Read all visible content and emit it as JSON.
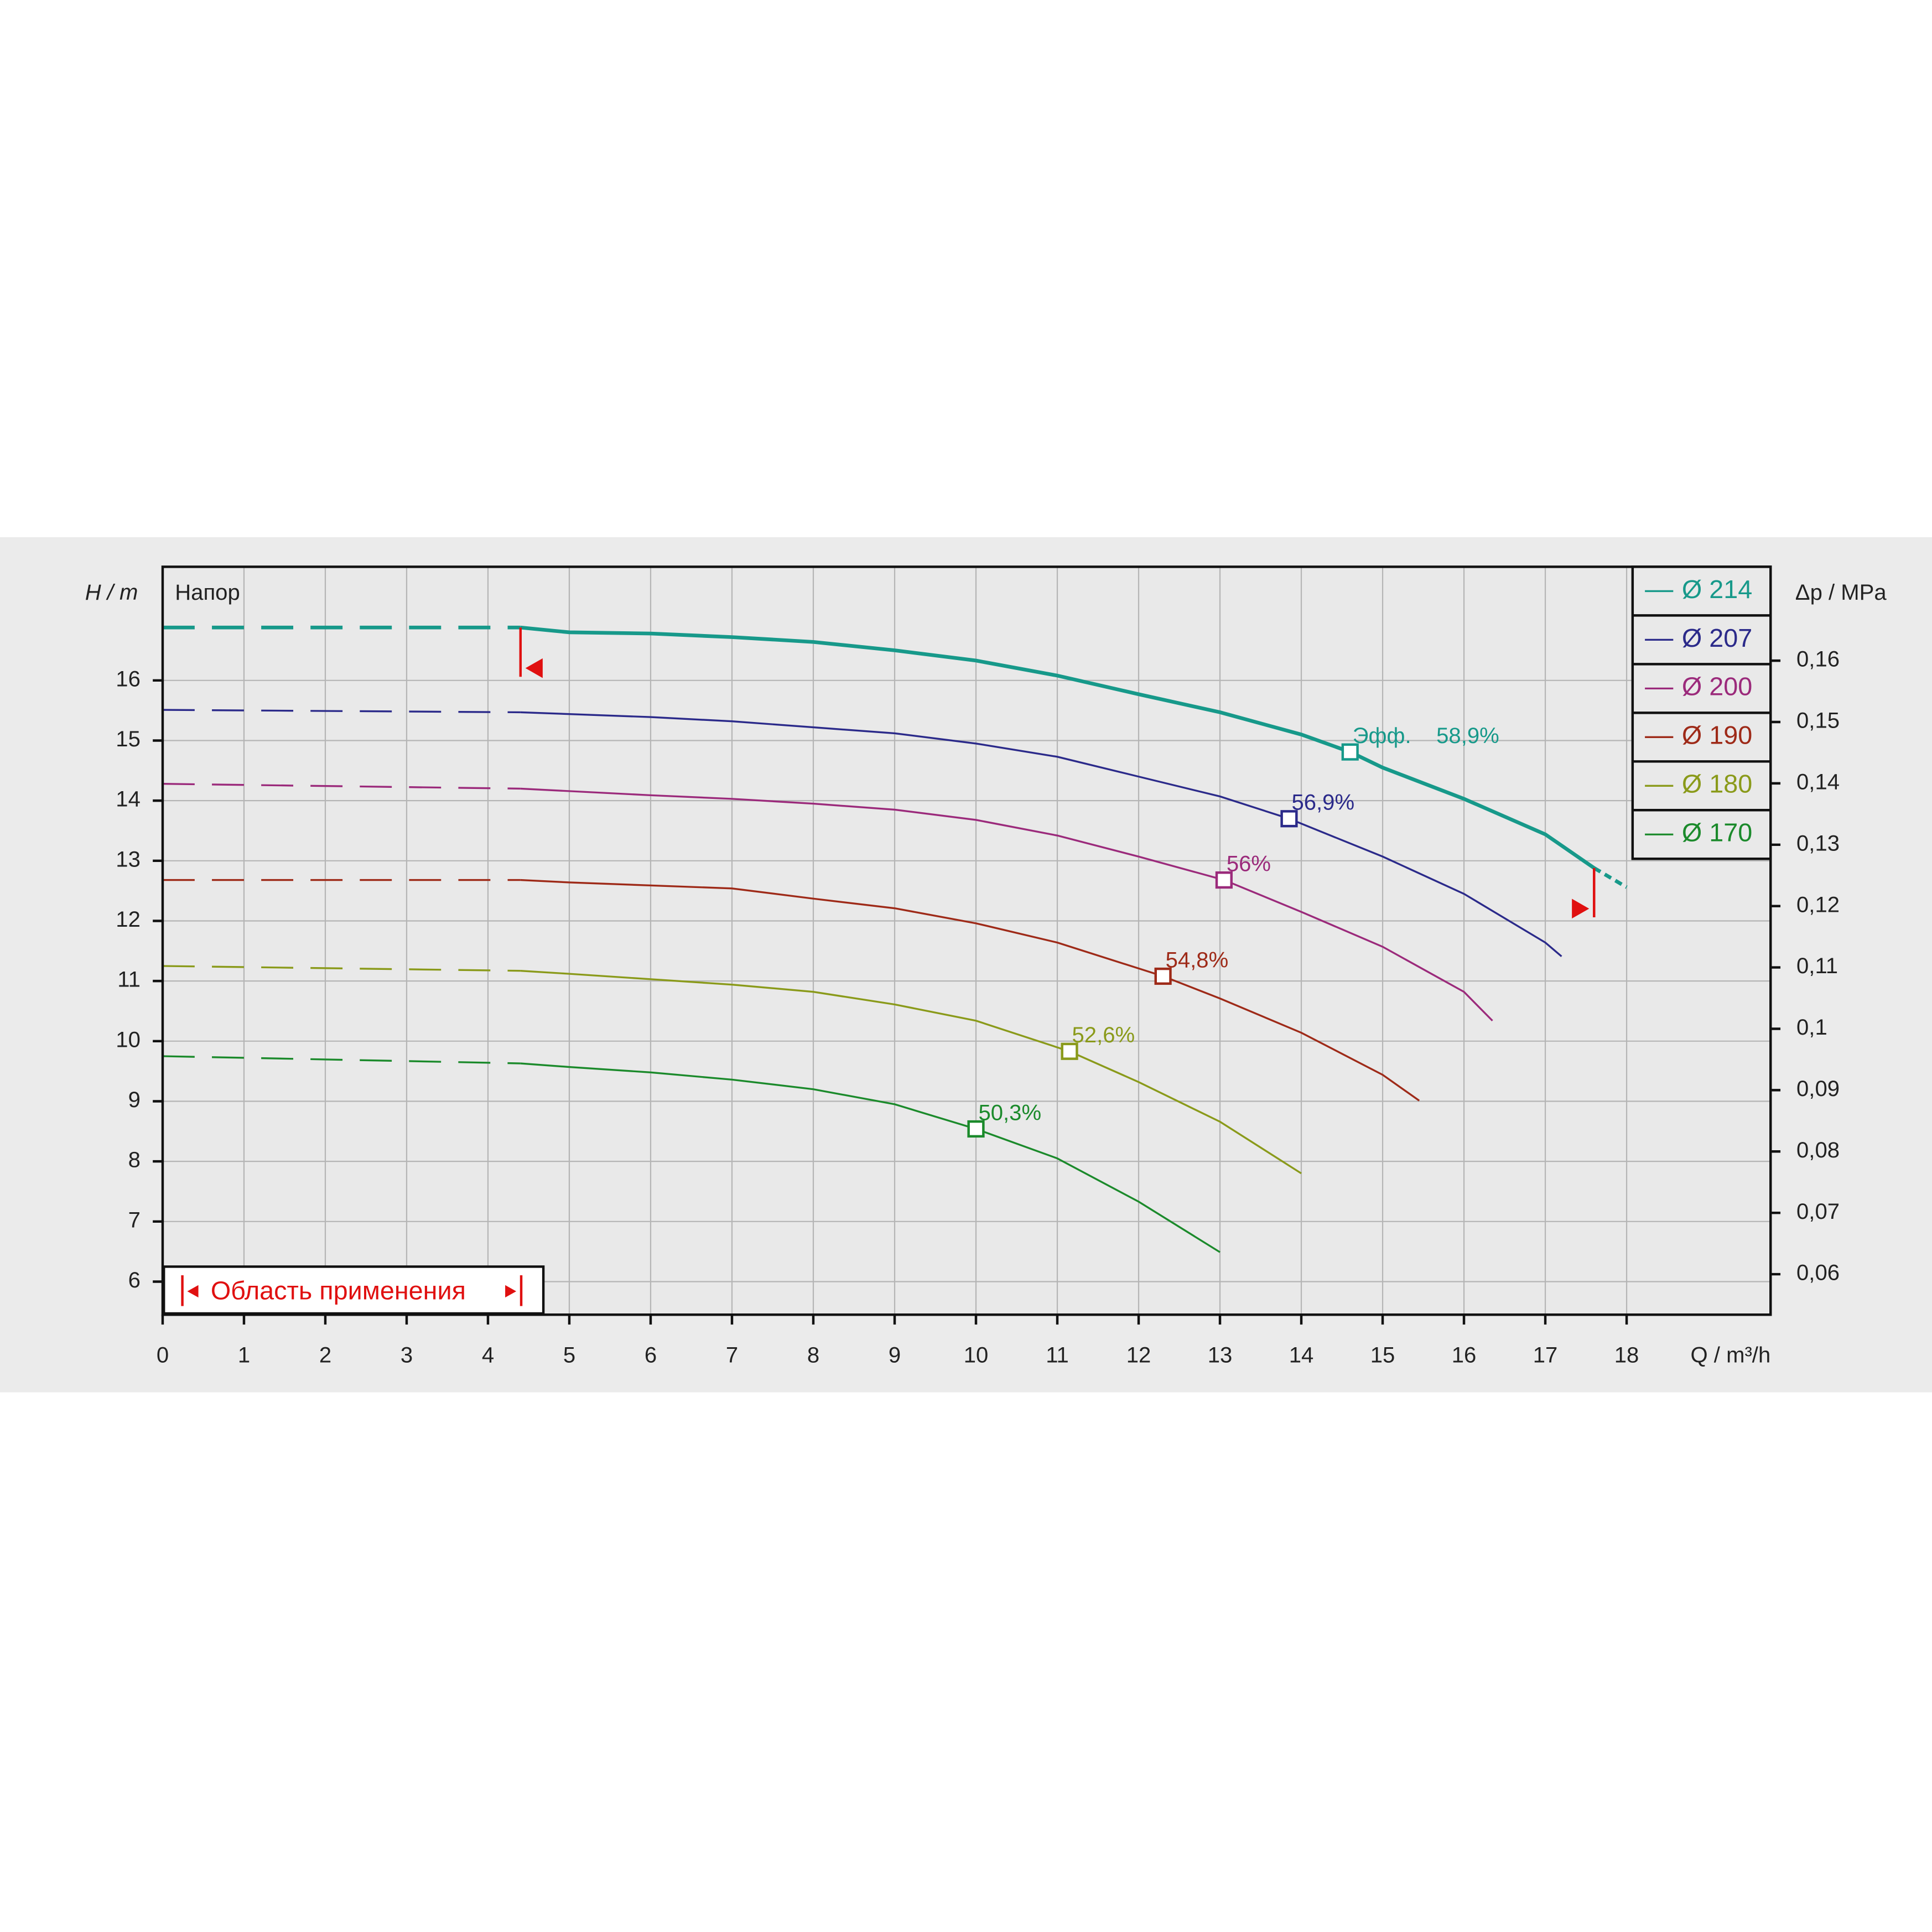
{
  "chart_data": {
    "type": "line",
    "y_label": "H / m",
    "y2_label": "Δp / MPa",
    "x_label": "Q / m³/h",
    "annotation": "Напор",
    "range_label": "Область применения",
    "eff_label": "Эфф.",
    "application_range": [
      4.4,
      17.6
    ],
    "xlim": [
      0,
      19.77
    ],
    "ylim": [
      5.45,
      17.89
    ],
    "y2lim": [
      0.0534,
      0.1753
    ],
    "xticks": [
      0,
      1,
      2,
      3,
      4,
      5,
      6,
      7,
      8,
      9,
      10,
      11,
      12,
      13,
      14,
      15,
      16,
      17,
      18
    ],
    "yticks": [
      6,
      7,
      8,
      9,
      10,
      11,
      12,
      13,
      14,
      15,
      16
    ],
    "y2ticks": [
      {
        "value": 0.06,
        "label": "0,06"
      },
      {
        "value": 0.07,
        "label": "0,07"
      },
      {
        "value": 0.08,
        "label": "0,08"
      },
      {
        "value": 0.09,
        "label": "0,09"
      },
      {
        "value": 0.1,
        "label": "0,1"
      },
      {
        "value": 0.11,
        "label": "0,11"
      },
      {
        "value": 0.12,
        "label": "0,12"
      },
      {
        "value": 0.13,
        "label": "0,13"
      },
      {
        "value": 0.14,
        "label": "0,14"
      },
      {
        "value": 0.15,
        "label": "0,15"
      },
      {
        "value": 0.16,
        "label": "0,16"
      }
    ],
    "grid": true,
    "legend": "upper right",
    "series": [
      {
        "name": "Ø 214",
        "color": "#17998a",
        "width": 3,
        "x": [
          0,
          4.4,
          5,
          6,
          7,
          8,
          9,
          10,
          11,
          12,
          13,
          14,
          14.6,
          15,
          16,
          17,
          17.6,
          18
        ],
        "values": [
          16.88,
          16.88,
          16.8,
          16.78,
          16.72,
          16.64,
          16.5,
          16.33,
          16.08,
          15.77,
          15.47,
          15.1,
          14.81,
          14.55,
          14.03,
          13.44,
          12.88,
          12.56
        ],
        "bep_x": 14.6,
        "bep_y": 14.81,
        "bep_label": "58,9%"
      },
      {
        "name": "Ø 207",
        "color": "#2b2a8a",
        "width": 1.5,
        "x": [
          0,
          4.4,
          6,
          7,
          8,
          9,
          10,
          11,
          12,
          13,
          13.85,
          15,
          16,
          17,
          17.2
        ],
        "values": [
          15.51,
          15.47,
          15.39,
          15.32,
          15.22,
          15.12,
          14.95,
          14.73,
          14.4,
          14.07,
          13.7,
          13.07,
          12.45,
          11.64,
          11.41
        ],
        "bep_x": 13.85,
        "bep_y": 13.7,
        "bep_label": "56,9%"
      },
      {
        "name": "Ø 200",
        "color": "#9b2a7b",
        "width": 1.5,
        "x": [
          0,
          4.4,
          6,
          7,
          8,
          9,
          10,
          11,
          12,
          13.05,
          14,
          15,
          16,
          16.35
        ],
        "values": [
          14.28,
          14.2,
          14.09,
          14.03,
          13.95,
          13.85,
          13.68,
          13.42,
          13.07,
          12.68,
          12.15,
          11.57,
          10.82,
          10.34
        ],
        "bep_x": 13.05,
        "bep_y": 12.68,
        "bep_label": "56%"
      },
      {
        "name": "Ø 190",
        "color": "#9e2a18",
        "width": 1.5,
        "x": [
          0,
          4.4,
          5,
          7,
          8,
          9,
          10,
          11,
          12.3,
          13,
          14,
          15,
          15.45
        ],
        "values": [
          12.68,
          12.68,
          12.64,
          12.54,
          12.37,
          12.21,
          11.96,
          11.64,
          11.08,
          10.71,
          10.14,
          9.44,
          9.01
        ],
        "bep_x": 12.3,
        "bep_y": 11.08,
        "bep_label": "54,8%"
      },
      {
        "name": "Ø 180",
        "color": "#8a9a1a",
        "width": 1.5,
        "x": [
          0,
          4.4,
          5,
          7,
          8,
          9,
          10,
          11.15,
          12,
          13,
          14
        ],
        "values": [
          11.25,
          11.17,
          11.12,
          10.94,
          10.82,
          10.61,
          10.34,
          9.83,
          9.32,
          8.66,
          7.8
        ],
        "bep_x": 11.15,
        "bep_y": 9.83,
        "bep_label": "52,6%"
      },
      {
        "name": "Ø 170",
        "color": "#1b8a2b",
        "width": 1.5,
        "x": [
          0,
          4.4,
          5,
          6,
          7,
          8,
          9,
          10,
          11,
          12,
          13
        ],
        "values": [
          9.75,
          9.63,
          9.57,
          9.48,
          9.36,
          9.2,
          8.95,
          8.54,
          8.05,
          7.33,
          6.49
        ],
        "bep_x": 10,
        "bep_y": 8.54,
        "bep_label": "50,3%"
      }
    ]
  }
}
